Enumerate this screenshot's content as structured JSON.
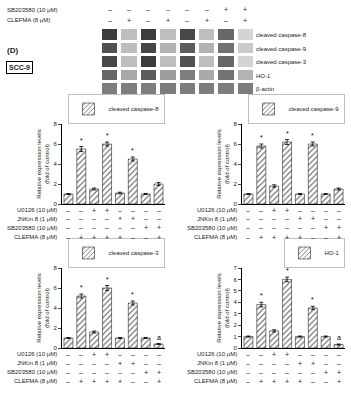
{
  "chart_data": [
    {
      "type": "heatmap",
      "categories": [
        null,
        null,
        null,
        null,
        null,
        null,
        null,
        null
      ],
      "y": [
        "cleaved caspase-8",
        "cleaved caspase-9",
        "cleaved caspase-3",
        "HO-1",
        "β-actin"
      ],
      "cells": [
        [
          0.9,
          0.3,
          0.9,
          0.3,
          0.85,
          0.3,
          0.7,
          0.2
        ],
        [
          0.8,
          0.3,
          0.85,
          0.35,
          0.75,
          0.35,
          0.65,
          0.25
        ],
        [
          0.85,
          0.3,
          0.9,
          0.3,
          0.8,
          0.3,
          0.7,
          0.2
        ],
        [
          0.7,
          0.4,
          0.75,
          0.45,
          0.6,
          0.4,
          0.65,
          0.35
        ],
        [
          0.6,
          0.6,
          0.6,
          0.6,
          0.6,
          0.6,
          0.6,
          0.6
        ]
      ],
      "treatments": [
        {
          "label": "SB203580 (10 μM)",
          "signs": [
            "–",
            "–",
            "–",
            "–",
            "–",
            "–",
            "+",
            "+"
          ]
        },
        {
          "label": "CLEFMA (8 μM)",
          "signs": [
            "–",
            "+",
            "–",
            "+",
            "–",
            "+",
            "–",
            "+"
          ]
        }
      ],
      "annotations": [
        {
          "text": "(D)"
        },
        {
          "text": "SCC-9"
        }
      ]
    },
    {
      "type": "bar",
      "categories": [
        null,
        null,
        null,
        null,
        null,
        null,
        null,
        null
      ],
      "series": [
        {
          "name": "cleaved caspase-8",
          "color": "#c8c8c8",
          "values": [
            1.0,
            5.5,
            1.5,
            6.0,
            1.1,
            4.5,
            1.0,
            2.0
          ],
          "errors": [
            0.05,
            0.25,
            0.1,
            0.2,
            0.08,
            0.2,
            0.05,
            0.15
          ]
        }
      ],
      "ylabel": "Relative expression levels\n(fold of control)",
      "ylim": [
        0,
        8
      ],
      "yticks": [
        0,
        2,
        4,
        6,
        8
      ],
      "grid": false,
      "legend": "upper right",
      "annotations": [
        {
          "x": 1,
          "text": "*"
        },
        {
          "x": 3,
          "text": "*"
        },
        {
          "x": 5,
          "text": "*"
        }
      ],
      "treatments": [
        {
          "label": "U0126 (10 μM)",
          "signs": [
            "–",
            "–",
            "+",
            "+",
            "–",
            "–",
            "–",
            "–"
          ]
        },
        {
          "label": "JNKin 8 (1 μM)",
          "signs": [
            "–",
            "–",
            "–",
            "–",
            "+",
            "+",
            "–",
            "–"
          ]
        },
        {
          "label": "SB203580 (10 μM)",
          "signs": [
            "–",
            "–",
            "–",
            "–",
            "–",
            "–",
            "+",
            "+"
          ]
        },
        {
          "label": "CLEFMA (8 μM)",
          "signs": [
            "–",
            "+",
            "+",
            "+",
            "+",
            "–",
            "–",
            "+"
          ]
        }
      ]
    },
    {
      "type": "bar",
      "categories": [
        null,
        null,
        null,
        null,
        null,
        null,
        null,
        null
      ],
      "series": [
        {
          "name": "cleaved caspase-9",
          "color": "#c8c8c8",
          "values": [
            1.0,
            5.8,
            1.8,
            6.2,
            1.0,
            6.0,
            1.0,
            1.5
          ],
          "errors": [
            0.05,
            0.2,
            0.12,
            0.25,
            0.05,
            0.2,
            0.05,
            0.1
          ]
        }
      ],
      "ylabel": "Relative expression levels\n(fold of control)",
      "ylim": [
        0,
        8
      ],
      "yticks": [
        0,
        2,
        4,
        6,
        8
      ],
      "grid": false,
      "legend": "upper right",
      "annotations": [
        {
          "x": 1,
          "text": "*"
        },
        {
          "x": 3,
          "text": "*"
        },
        {
          "x": 5,
          "text": "*"
        }
      ],
      "treatments": [
        {
          "label": "U0126 (10 μM)",
          "signs": [
            "–",
            "–",
            "+",
            "+",
            "–",
            "–",
            "–",
            "–"
          ]
        },
        {
          "label": "JNKin 8 (1 μM)",
          "signs": [
            "–",
            "–",
            "–",
            "–",
            "+",
            "+",
            "–",
            "–"
          ]
        },
        {
          "label": "SB203580 (10 μM)",
          "signs": [
            "–",
            "–",
            "–",
            "–",
            "–",
            "–",
            "+",
            "+"
          ]
        },
        {
          "label": "CLEFMA (8 μM)",
          "signs": [
            "–",
            "+",
            "+",
            "+",
            "+",
            "–",
            "–",
            "+"
          ]
        }
      ]
    },
    {
      "type": "bar",
      "categories": [
        null,
        null,
        null,
        null,
        null,
        null,
        null,
        null
      ],
      "series": [
        {
          "name": "cleaved caspase-3",
          "color": "#c8c8c8",
          "values": [
            1.0,
            5.2,
            1.6,
            6.0,
            1.0,
            4.5,
            1.0,
            0.4
          ],
          "errors": [
            0.05,
            0.2,
            0.1,
            0.25,
            0.05,
            0.2,
            0.05,
            0.05
          ]
        }
      ],
      "ylabel": "Relative expression levels\n(fold of control)",
      "ylim": [
        0,
        8
      ],
      "yticks": [
        0,
        2,
        4,
        6,
        8
      ],
      "grid": false,
      "legend": "upper right",
      "annotations": [
        {
          "x": 1,
          "text": "*"
        },
        {
          "x": 3,
          "text": "*"
        },
        {
          "x": 5,
          "text": "*"
        },
        {
          "x": 7,
          "text": "a"
        }
      ],
      "treatments": [
        {
          "label": "U0126 (10 μM)",
          "signs": [
            "–",
            "–",
            "+",
            "+",
            "–",
            "–",
            "–",
            "–"
          ]
        },
        {
          "label": "JNKin 8 (1 μM)",
          "signs": [
            "–",
            "–",
            "–",
            "–",
            "+",
            "+",
            "–",
            "–"
          ]
        },
        {
          "label": "SB203580 (10 μM)",
          "signs": [
            "–",
            "–",
            "–",
            "–",
            "–",
            "–",
            "+",
            "+"
          ]
        },
        {
          "label": "CLEFMA (8 μM)",
          "signs": [
            "–",
            "+",
            "+",
            "+",
            "+",
            "–",
            "–",
            "+"
          ]
        }
      ]
    },
    {
      "type": "bar",
      "categories": [
        null,
        null,
        null,
        null,
        null,
        null,
        null,
        null
      ],
      "series": [
        {
          "name": "HO-1",
          "color": "#c8c8c8",
          "values": [
            1.0,
            3.8,
            1.5,
            6.0,
            1.0,
            3.5,
            1.0,
            0.3
          ],
          "errors": [
            0.05,
            0.2,
            0.1,
            0.2,
            0.05,
            0.15,
            0.05,
            0.05
          ]
        }
      ],
      "ylabel": "Relative expression levels\n(fold of control)",
      "ylim": [
        0,
        7
      ],
      "yticks": [
        0,
        1,
        2,
        3,
        4,
        5,
        6,
        7
      ],
      "grid": false,
      "legend": "upper right",
      "annotations": [
        {
          "x": 1,
          "text": "*"
        },
        {
          "x": 3,
          "text": "*"
        },
        {
          "x": 5,
          "text": "*"
        },
        {
          "x": 7,
          "text": "a"
        }
      ],
      "treatments": [
        {
          "label": "U0126 (10 μM)",
          "signs": [
            "–",
            "–",
            "+",
            "+",
            "–",
            "–",
            "–",
            "–"
          ]
        },
        {
          "label": "JNKin 8 (1 μM)",
          "signs": [
            "–",
            "–",
            "–",
            "–",
            "+",
            "+",
            "–",
            "–"
          ]
        },
        {
          "label": "SB203580 (10 μM)",
          "signs": [
            "–",
            "–",
            "–",
            "–",
            "–",
            "–",
            "+",
            "+"
          ]
        },
        {
          "label": "CLEFMA (8 μM)",
          "signs": [
            "–",
            "+",
            "+",
            "+",
            "+",
            "–",
            "–",
            "+"
          ]
        }
      ]
    }
  ]
}
